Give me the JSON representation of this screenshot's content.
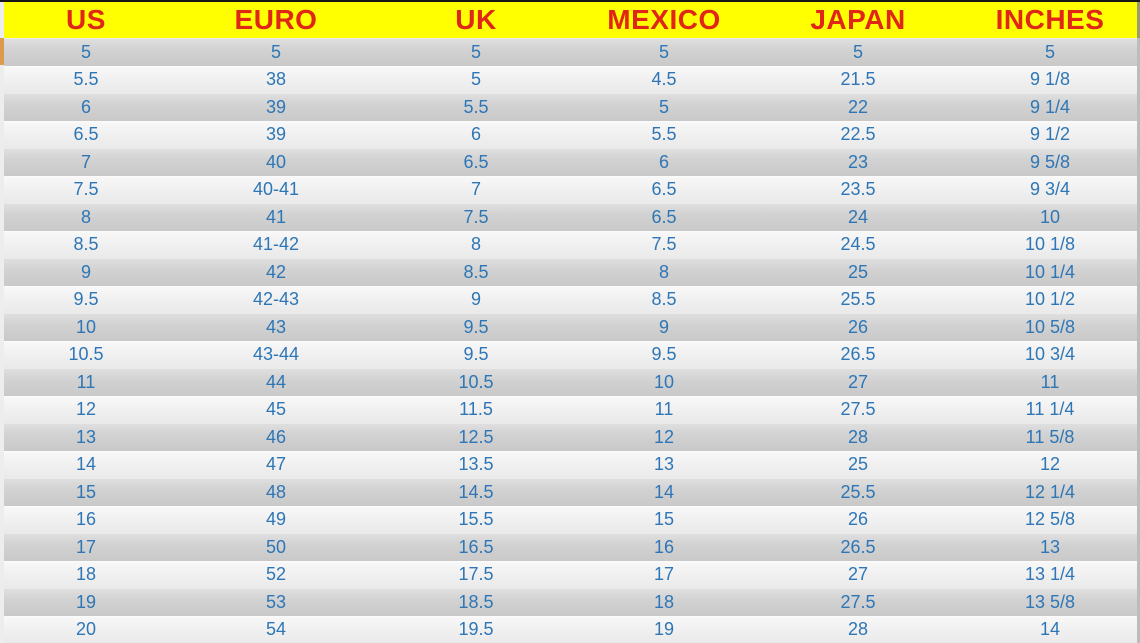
{
  "chart_data": {
    "type": "table",
    "columns": [
      "US",
      "EURO",
      "UK",
      "MEXICO",
      "JAPAN",
      "INCHES"
    ],
    "rows": [
      [
        "5",
        "5",
        "5",
        "5",
        "5",
        "5"
      ],
      [
        "5.5",
        "38",
        "5",
        "4.5",
        "21.5",
        "9 1/8"
      ],
      [
        "6",
        "39",
        "5.5",
        "5",
        "22",
        "9 1/4"
      ],
      [
        "6.5",
        "39",
        "6",
        "5.5",
        "22.5",
        "9 1/2"
      ],
      [
        "7",
        "40",
        "6.5",
        "6",
        "23",
        "9 5/8"
      ],
      [
        "7.5",
        "40-41",
        "7",
        "6.5",
        "23.5",
        "9 3/4"
      ],
      [
        "8",
        "41",
        "7.5",
        "6.5",
        "24",
        "10"
      ],
      [
        "8.5",
        "41-42",
        "8",
        "7.5",
        "24.5",
        "10 1/8"
      ],
      [
        "9",
        "42",
        "8.5",
        "8",
        "25",
        "10 1/4"
      ],
      [
        "9.5",
        "42-43",
        "9",
        "8.5",
        "25.5",
        "10 1/2"
      ],
      [
        "10",
        "43",
        "9.5",
        "9",
        "26",
        "10 5/8"
      ],
      [
        "10.5",
        "43-44",
        "9.5",
        "9.5",
        "26.5",
        "10 3/4"
      ],
      [
        "11",
        "44",
        "10.5",
        "10",
        "27",
        "11"
      ],
      [
        "12",
        "45",
        "11.5",
        "11",
        "27.5",
        "11 1/4"
      ],
      [
        "13",
        "46",
        "12.5",
        "12",
        "28",
        "11 5/8"
      ],
      [
        "14",
        "47",
        "13.5",
        "13",
        "25",
        "12"
      ],
      [
        "15",
        "48",
        "14.5",
        "14",
        "25.5",
        "12 1/4"
      ],
      [
        "16",
        "49",
        "15.5",
        "15",
        "26",
        "12 5/8"
      ],
      [
        "17",
        "50",
        "16.5",
        "16",
        "26.5",
        "13"
      ],
      [
        "18",
        "52",
        "17.5",
        "17",
        "27",
        "13 1/4"
      ],
      [
        "19",
        "53",
        "18.5",
        "18",
        "27.5",
        "13 5/8"
      ],
      [
        "20",
        "54",
        "19.5",
        "19",
        "28",
        "14"
      ]
    ],
    "layout": {
      "grid": "off",
      "header_position": "top",
      "row_striping": "gray-light-alternating"
    },
    "colors": {
      "header_bg": "#ffff00",
      "header_text": "#e02617",
      "cell_text": "#2e76b6",
      "row_gray": "#d2d2d2",
      "row_light": "#f0f0f0",
      "top_border": "#161616"
    }
  }
}
